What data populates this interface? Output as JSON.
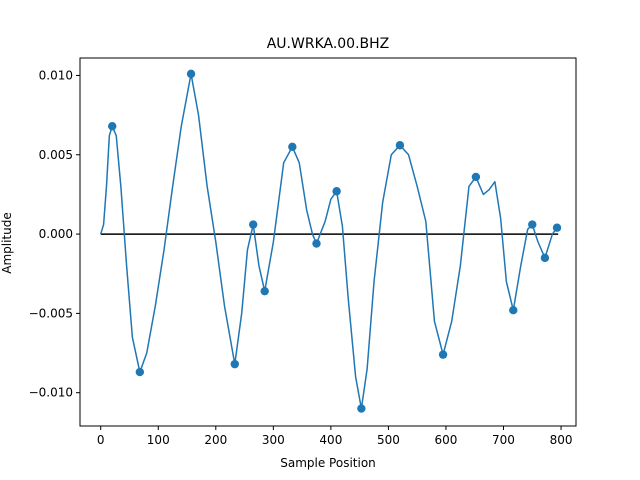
{
  "chart_data": {
    "type": "line",
    "title": "AU.WRKA.00.BHZ",
    "xlabel": "Sample Position",
    "ylabel": "Amplitude",
    "xlim": [
      -36,
      826
    ],
    "ylim": [
      -0.0121,
      0.0111
    ],
    "x_ticks": [
      {
        "value": 0,
        "label": "0"
      },
      {
        "value": 100,
        "label": "100"
      },
      {
        "value": 200,
        "label": "200"
      },
      {
        "value": 300,
        "label": "300"
      },
      {
        "value": 400,
        "label": "400"
      },
      {
        "value": 500,
        "label": "500"
      },
      {
        "value": 600,
        "label": "600"
      },
      {
        "value": 700,
        "label": "700"
      },
      {
        "value": 800,
        "label": "800"
      }
    ],
    "y_ticks": [
      {
        "value": 0.01,
        "label": "0.010"
      },
      {
        "value": 0.005,
        "label": "0.005"
      },
      {
        "value": 0.0,
        "label": "0.000"
      },
      {
        "value": -0.005,
        "label": "−0.005"
      },
      {
        "value": -0.01,
        "label": "−0.010"
      }
    ],
    "baseline": {
      "y": 0,
      "x_range": [
        0,
        795
      ],
      "color": "#000000"
    },
    "series": [
      {
        "color": "#1f77b4",
        "curve": [
          [
            0,
            0.0
          ],
          [
            5,
            0.0006
          ],
          [
            10,
            0.003
          ],
          [
            15,
            0.0062
          ],
          [
            20,
            0.0068
          ],
          [
            27,
            0.0062
          ],
          [
            35,
            0.003
          ],
          [
            45,
            -0.002
          ],
          [
            55,
            -0.0065
          ],
          [
            68,
            -0.0087
          ],
          [
            80,
            -0.0075
          ],
          [
            95,
            -0.0045
          ],
          [
            110,
            -0.001
          ],
          [
            125,
            0.003
          ],
          [
            140,
            0.0068
          ],
          [
            157,
            0.0101
          ],
          [
            170,
            0.0075
          ],
          [
            185,
            0.003
          ],
          [
            200,
            -0.0005
          ],
          [
            215,
            -0.0045
          ],
          [
            233,
            -0.0082
          ],
          [
            245,
            -0.005
          ],
          [
            255,
            -0.001
          ],
          [
            265,
            0.0006
          ],
          [
            275,
            -0.002
          ],
          [
            285,
            -0.0036
          ],
          [
            300,
            -0.0005
          ],
          [
            318,
            0.0045
          ],
          [
            333,
            0.0055
          ],
          [
            345,
            0.0045
          ],
          [
            358,
            0.0015
          ],
          [
            368,
            0.0
          ],
          [
            375,
            -0.0006
          ],
          [
            390,
            0.0008
          ],
          [
            400,
            0.0022
          ],
          [
            410,
            0.0027
          ],
          [
            420,
            0.0005
          ],
          [
            430,
            -0.004
          ],
          [
            443,
            -0.009
          ],
          [
            453,
            -0.011
          ],
          [
            463,
            -0.0085
          ],
          [
            475,
            -0.003
          ],
          [
            490,
            0.002
          ],
          [
            505,
            0.005
          ],
          [
            520,
            0.0056
          ],
          [
            535,
            0.005
          ],
          [
            550,
            0.003
          ],
          [
            565,
            0.0008
          ],
          [
            580,
            -0.0055
          ],
          [
            595,
            -0.0076
          ],
          [
            610,
            -0.0055
          ],
          [
            625,
            -0.002
          ],
          [
            640,
            0.003
          ],
          [
            652,
            0.0036
          ],
          [
            665,
            0.0025
          ],
          [
            675,
            0.0028
          ],
          [
            685,
            0.0033
          ],
          [
            695,
            0.001
          ],
          [
            705,
            -0.003
          ],
          [
            717,
            -0.0048
          ],
          [
            730,
            -0.002
          ],
          [
            742,
            0.0003
          ],
          [
            750,
            0.0006
          ],
          [
            760,
            -0.0005
          ],
          [
            772,
            -0.0015
          ],
          [
            785,
            0.0
          ],
          [
            793,
            0.0004
          ]
        ],
        "points": [
          [
            20,
            0.0068
          ],
          [
            68,
            -0.0087
          ],
          [
            157,
            0.0101
          ],
          [
            233,
            -0.0082
          ],
          [
            265,
            0.0006
          ],
          [
            285,
            -0.0036
          ],
          [
            333,
            0.0055
          ],
          [
            375,
            -0.0006
          ],
          [
            410,
            0.0027
          ],
          [
            453,
            -0.011
          ],
          [
            520,
            0.0056
          ],
          [
            595,
            -0.0076
          ],
          [
            652,
            0.0036
          ],
          [
            717,
            -0.0048
          ],
          [
            750,
            0.0006
          ],
          [
            772,
            -0.0015
          ],
          [
            793,
            0.0004
          ]
        ]
      }
    ]
  }
}
